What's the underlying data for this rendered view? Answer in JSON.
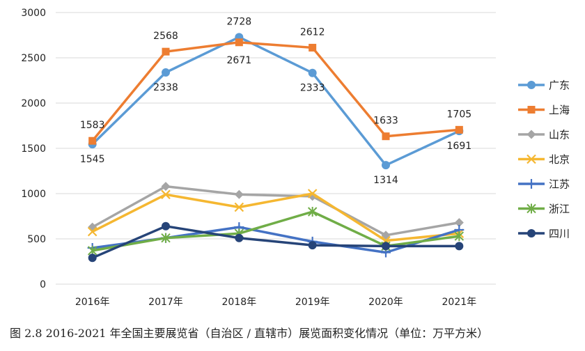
{
  "chart_data": {
    "type": "line",
    "title": "图 2.8 2016-2021 年全国主要展览省（自治区 / 直辖市）展览面积变化情况（单位：万平方米）",
    "categories": [
      "2016年",
      "2017年",
      "2018年",
      "2019年",
      "2020年",
      "2021年"
    ],
    "ylim": [
      0,
      3000
    ],
    "yticks": [
      "0",
      "500",
      "1000",
      "1500",
      "2000",
      "2500",
      "3000"
    ],
    "grid": true,
    "legend": "right",
    "series": [
      {
        "name": "广东",
        "color": "#5B9BD5",
        "marker": "circle",
        "values": [
          1545,
          2338,
          2728,
          2333,
          1314,
          1691
        ],
        "labels": [
          "1545",
          "2338",
          "2728",
          "2333",
          "1314",
          "1691"
        ]
      },
      {
        "name": "上海",
        "color": "#ED7D31",
        "marker": "square",
        "values": [
          1583,
          2568,
          2671,
          2612,
          1633,
          1705
        ],
        "labels": [
          "1583",
          "2568",
          "2671",
          "2612",
          "1633",
          "1705"
        ]
      },
      {
        "name": "山东",
        "color": "#A5A5A5",
        "marker": "diamond",
        "values": [
          630,
          1080,
          990,
          970,
          540,
          680
        ]
      },
      {
        "name": "北京",
        "color": "#F5B731",
        "marker": "x",
        "values": [
          580,
          990,
          850,
          1000,
          480,
          560
        ]
      },
      {
        "name": "江苏",
        "color": "#4472C4",
        "marker": "plus",
        "values": [
          400,
          510,
          630,
          470,
          350,
          600
        ]
      },
      {
        "name": "浙江",
        "color": "#70AD47",
        "marker": "star",
        "values": [
          370,
          510,
          560,
          800,
          420,
          530
        ]
      },
      {
        "name": "四川",
        "color": "#264478",
        "marker": "circle",
        "values": [
          290,
          640,
          510,
          430,
          420,
          420
        ]
      }
    ]
  }
}
